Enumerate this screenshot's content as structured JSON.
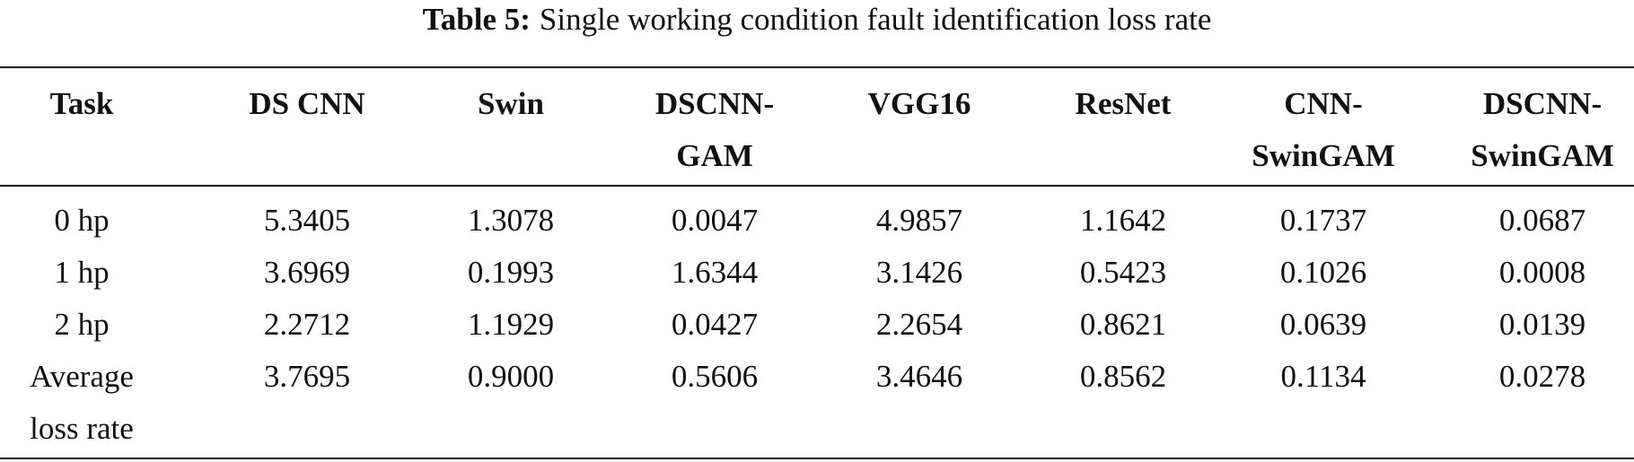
{
  "title": {
    "label": "Table 5:",
    "text": "Single working condition fault identification loss rate"
  },
  "table": {
    "header": [
      "Task",
      "DS CNN",
      "Swin",
      "DSCNN-GAM",
      "VGG16",
      "ResNet",
      "CNN-SwinGAM",
      "DSCNN-SwinGAM"
    ],
    "rows": [
      [
        "0 hp",
        "5.3405",
        "1.3078",
        "0.0047",
        "4.9857",
        "1.1642",
        "0.1737",
        "0.0687"
      ],
      [
        "1 hp",
        "3.6969",
        "0.1993",
        "1.6344",
        "3.1426",
        "0.5423",
        "0.1026",
        "0.0008"
      ],
      [
        "2 hp",
        "2.2712",
        "1.1929",
        "0.0427",
        "2.2654",
        "0.8621",
        "0.0639",
        "0.0139"
      ],
      [
        "Average loss rate",
        "3.7695",
        "0.9000",
        "0.5606",
        "3.4646",
        "0.8562",
        "0.1134",
        "0.0278"
      ]
    ]
  }
}
